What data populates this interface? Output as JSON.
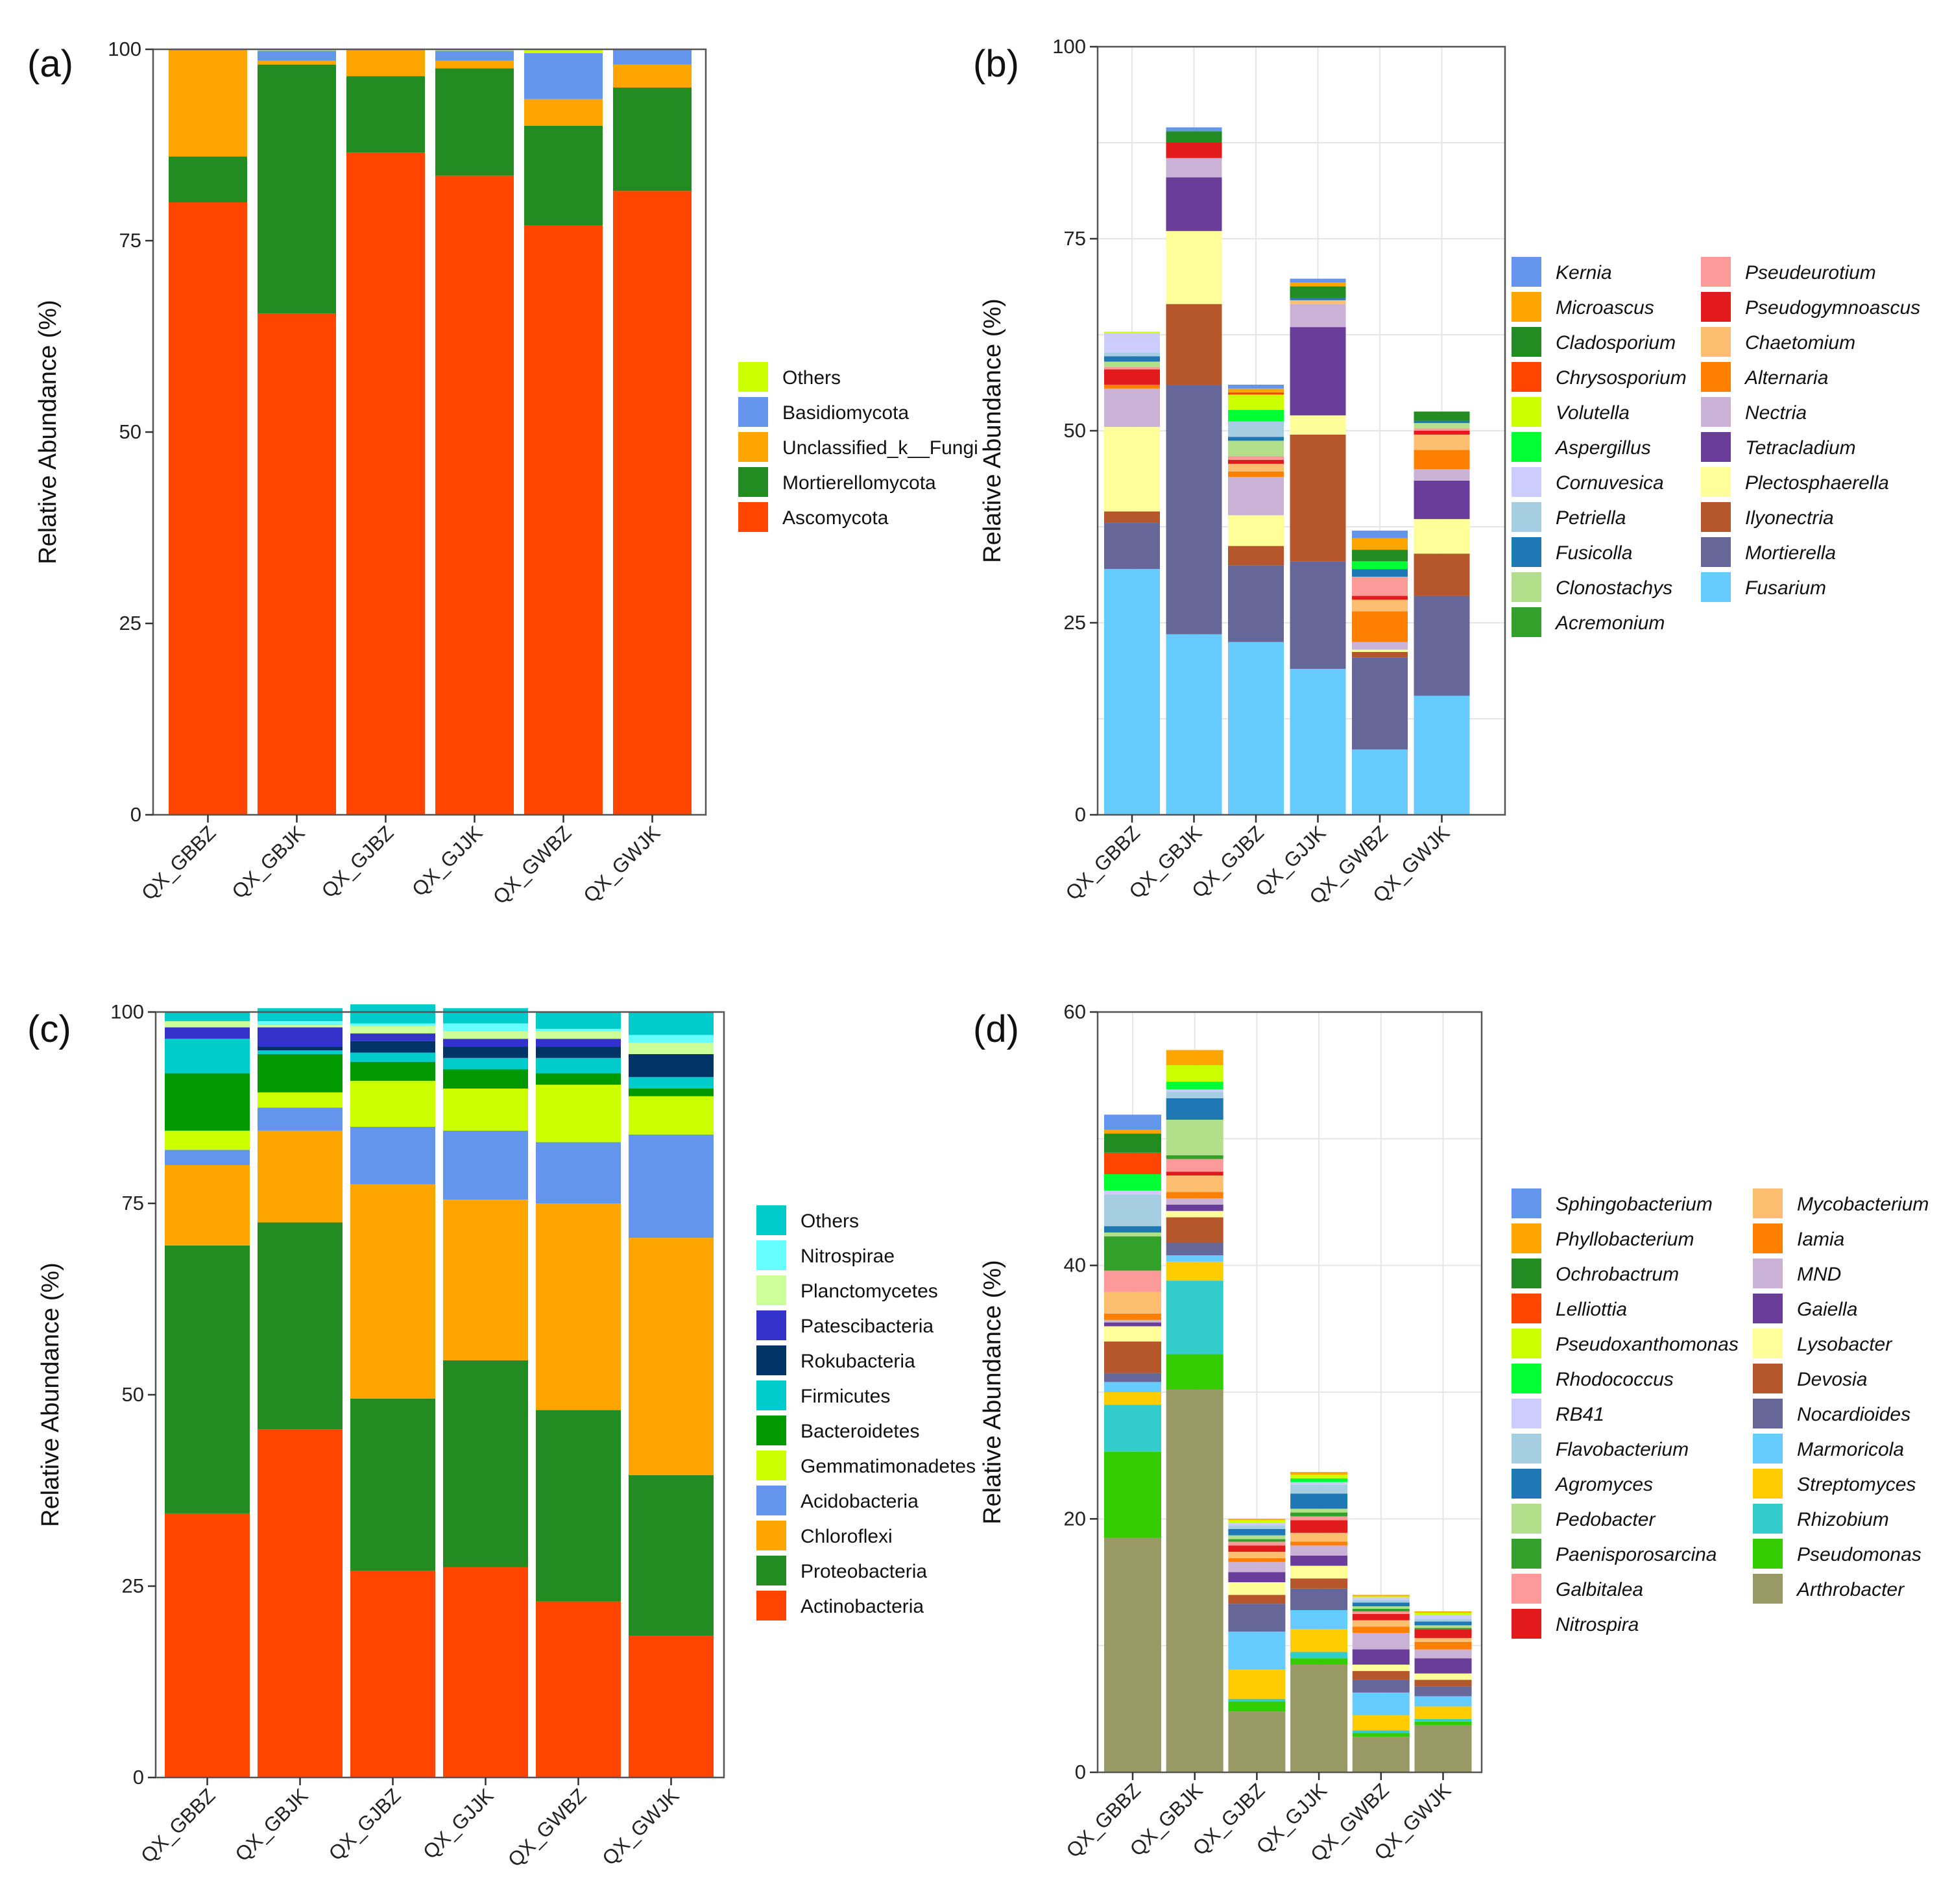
{
  "chart_data": [
    {
      "panel_label": "(a)",
      "type": "stacked-bar",
      "ylabel": "Relative Abundance (%)",
      "ylim": [
        0,
        100
      ],
      "yticks": [
        0,
        25,
        50,
        75,
        100
      ],
      "categories": [
        "QX_GBBZ",
        "QX_GBJK",
        "QX_GJBZ",
        "QX_GJJK",
        "QX_GWBZ",
        "QX_GWJK"
      ],
      "series": [
        {
          "name": "Ascomycota",
          "color": "#FF4500",
          "values": [
            80.0,
            65.5,
            86.5,
            83.5,
            77.0,
            81.5
          ]
        },
        {
          "name": "Mortierellomycota",
          "color": "#228B22",
          "values": [
            6.0,
            32.5,
            10.0,
            14.0,
            13.0,
            13.5
          ]
        },
        {
          "name": "Unclassified_k__Fungi",
          "color": "#FFA500",
          "values": [
            14.0,
            0.5,
            3.5,
            1.0,
            3.5,
            3.0
          ]
        },
        {
          "name": "Basidiomycota",
          "color": "#6495ED",
          "values": [
            0.0,
            1.3,
            0.0,
            1.3,
            6.0,
            2.0
          ]
        },
        {
          "name": "Others",
          "color": "#CCFF00",
          "values": [
            0.0,
            0.2,
            0.0,
            0.2,
            0.5,
            0.0
          ]
        }
      ],
      "legend_columns": 1,
      "legend_italic": false
    },
    {
      "panel_label": "(b)",
      "type": "stacked-bar",
      "ylabel": "Relative Abundance (%)",
      "ylim": [
        0,
        100
      ],
      "yticks": [
        0,
        25,
        50,
        75,
        100
      ],
      "categories": [
        "QX_GBBZ",
        "QX_GBJK",
        "QX_GJBZ",
        "QX_GJJK",
        "QX_GWBZ",
        "QX_GWJK"
      ],
      "series": [
        {
          "name": "Fusarium",
          "color": "#66CCFF",
          "values": [
            32.0,
            23.5,
            22.5,
            19.0,
            8.5,
            15.5
          ]
        },
        {
          "name": "Mortierella",
          "color": "#666699",
          "values": [
            6.0,
            32.5,
            10.0,
            14.0,
            12.0,
            13.0
          ]
        },
        {
          "name": "Ilyonectria",
          "color": "#B5562B",
          "values": [
            1.5,
            10.5,
            2.5,
            16.5,
            0.7,
            5.5
          ]
        },
        {
          "name": "Plectosphaerella",
          "color": "#FFFF99",
          "values": [
            11.0,
            9.5,
            4.0,
            2.5,
            0.3,
            4.5
          ]
        },
        {
          "name": "Tetracladium",
          "color": "#6A3D9A",
          "values": [
            0.0,
            7.0,
            0.0,
            11.5,
            0.0,
            5.0
          ]
        },
        {
          "name": "Nectria",
          "color": "#CAB2D6",
          "values": [
            5.0,
            2.5,
            5.0,
            3.0,
            1.0,
            1.5
          ]
        },
        {
          "name": "Alternaria",
          "color": "#FF7F00",
          "values": [
            0.5,
            0.0,
            0.7,
            0.0,
            4.0,
            2.5
          ]
        },
        {
          "name": "Chaetomium",
          "color": "#FDBF6F",
          "values": [
            0.0,
            0.0,
            1.0,
            0.5,
            1.5,
            2.0
          ]
        },
        {
          "name": "Pseudogymnoascus",
          "color": "#E31A1C",
          "values": [
            2.0,
            2.0,
            0.5,
            0.0,
            0.5,
            0.5
          ]
        },
        {
          "name": "Pseudeurotium",
          "color": "#FB9A99",
          "values": [
            0.3,
            0.0,
            0.5,
            0.0,
            2.5,
            0.3
          ]
        },
        {
          "name": "Acremonium",
          "color": "#33A02C",
          "values": [
            0.0,
            0.0,
            0.0,
            0.0,
            0.0,
            0.0
          ]
        },
        {
          "name": "Clonostachys",
          "color": "#B2DF8A",
          "values": [
            0.7,
            0.0,
            2.0,
            0.0,
            0.0,
            0.7
          ]
        },
        {
          "name": "Fusicolla",
          "color": "#1F78B4",
          "values": [
            0.7,
            0.0,
            0.5,
            0.3,
            1.0,
            0.3
          ]
        },
        {
          "name": "Petriella",
          "color": "#A6CEE3",
          "values": [
            0.5,
            0.0,
            2.0,
            0.0,
            0.0,
            0.0
          ]
        },
        {
          "name": "Cornuvesica",
          "color": "#CCCCFF",
          "values": [
            2.5,
            0.0,
            0.0,
            0.0,
            0.0,
            0.0
          ]
        },
        {
          "name": "Aspergillus",
          "color": "#00FF33",
          "values": [
            0.0,
            0.0,
            1.5,
            0.0,
            1.0,
            0.0
          ]
        },
        {
          "name": "Volutella",
          "color": "#CCFF00",
          "values": [
            0.2,
            0.0,
            2.0,
            0.0,
            0.0,
            0.0
          ]
        },
        {
          "name": "Chrysosporium",
          "color": "#FF4500",
          "values": [
            0.0,
            0.0,
            0.3,
            0.0,
            0.0,
            0.0
          ]
        },
        {
          "name": "Cladosporium",
          "color": "#228B22",
          "values": [
            0.0,
            1.5,
            0.0,
            1.5,
            1.5,
            1.2
          ]
        },
        {
          "name": "Microascus",
          "color": "#FFA500",
          "values": [
            0.0,
            0.0,
            0.5,
            0.5,
            1.5,
            0.0
          ]
        },
        {
          "name": "Kernia",
          "color": "#6495ED",
          "values": [
            0.0,
            0.5,
            0.5,
            0.5,
            1.0,
            0.0
          ]
        }
      ],
      "legend_columns": 2,
      "legend_italic": true,
      "legend_order": [
        "Kernia",
        "Microascus",
        "Cladosporium",
        "Chrysosporium",
        "Volutella",
        "Aspergillus",
        "Cornuvesica",
        "Petriella",
        "Fusicolla",
        "Clonostachys",
        "Acremonium",
        "Pseudeurotium",
        "Pseudogymnoascus",
        "Chaetomium",
        "Alternaria",
        "Nectria",
        "Tetracladium",
        "Plectosphaerella",
        "Ilyonectria",
        "Mortierella",
        "Fusarium"
      ]
    },
    {
      "panel_label": "(c)",
      "type": "stacked-bar",
      "ylabel": "Relative Abundance (%)",
      "ylim": [
        0,
        100
      ],
      "yticks": [
        0,
        25,
        50,
        75,
        100
      ],
      "categories": [
        "QX_GBBZ",
        "QX_GBJK",
        "QX_GJBZ",
        "QX_GJJK",
        "QX_GWBZ",
        "QX_GWJK"
      ],
      "series": [
        {
          "name": "Actinobacteria",
          "color": "#FF4500",
          "values": [
            34.5,
            45.5,
            27.0,
            27.5,
            23.0,
            18.5
          ]
        },
        {
          "name": "Proteobacteria",
          "color": "#228B22",
          "values": [
            35.0,
            27.0,
            22.5,
            27.0,
            25.0,
            21.0
          ]
        },
        {
          "name": "Chloroflexi",
          "color": "#FFA500",
          "values": [
            10.5,
            12.0,
            28.0,
            21.0,
            27.0,
            31.0
          ]
        },
        {
          "name": "Acidobacteria",
          "color": "#6495ED",
          "values": [
            2.0,
            3.0,
            7.5,
            9.0,
            8.0,
            13.5
          ]
        },
        {
          "name": "Gemmatimonadetes",
          "color": "#CCFF00",
          "values": [
            2.5,
            2.0,
            6.0,
            5.5,
            7.5,
            5.0
          ]
        },
        {
          "name": "Bacteroidetes",
          "color": "#009900",
          "values": [
            7.5,
            5.0,
            2.5,
            2.5,
            1.5,
            1.0
          ]
        },
        {
          "name": "Firmicutes",
          "color": "#00CCCC",
          "values": [
            4.5,
            0.5,
            1.2,
            1.5,
            2.0,
            1.5
          ]
        },
        {
          "name": "Rokubacteria",
          "color": "#003366",
          "values": [
            0.0,
            0.5,
            1.5,
            1.5,
            1.5,
            3.0
          ]
        },
        {
          "name": "Patescibacteria",
          "color": "#3333CC",
          "values": [
            1.5,
            2.5,
            1.0,
            1.0,
            1.0,
            0.0
          ]
        },
        {
          "name": "Planctomycetes",
          "color": "#CCFF99",
          "values": [
            0.8,
            0.3,
            1.0,
            1.0,
            1.0,
            1.5
          ]
        },
        {
          "name": "Nitrospirae",
          "color": "#66FFFF",
          "values": [
            0.0,
            0.5,
            0.3,
            1.0,
            0.3,
            1.0
          ]
        },
        {
          "name": "Others",
          "color": "#00CCCC",
          "values": [
            1.2,
            1.7,
            2.5,
            2.0,
            2.2,
            3.0
          ]
        }
      ],
      "legend_columns": 1,
      "legend_italic": false
    },
    {
      "panel_label": "(d)",
      "type": "stacked-bar",
      "ylabel": "Relative Abundance (%)",
      "ylim": [
        0,
        60
      ],
      "yticks": [
        0,
        20,
        40,
        60
      ],
      "categories": [
        "QX_GBBZ",
        "QX_GBJK",
        "QX_GJBZ",
        "QX_GJJK",
        "QX_GWBZ",
        "QX_GWJK"
      ],
      "series": [
        {
          "name": "Arthrobacter",
          "color": "#999966",
          "values": [
            18.5,
            30.2,
            4.8,
            8.5,
            2.8,
            3.7
          ]
        },
        {
          "name": "Pseudomonas",
          "color": "#33CC00",
          "values": [
            6.8,
            2.8,
            0.8,
            0.5,
            0.3,
            0.3
          ]
        },
        {
          "name": "Rhizobium",
          "color": "#33CCCC",
          "values": [
            3.7,
            5.8,
            0.2,
            0.5,
            0.2,
            0.2
          ]
        },
        {
          "name": "Streptomyces",
          "color": "#FFCC00",
          "values": [
            1.0,
            1.5,
            2.3,
            1.8,
            1.2,
            1.0
          ]
        },
        {
          "name": "Marmoricola",
          "color": "#66CCFF",
          "values": [
            0.8,
            0.5,
            3.0,
            1.5,
            1.8,
            0.8
          ]
        },
        {
          "name": "Nocardioides",
          "color": "#666699",
          "values": [
            0.7,
            1.0,
            2.2,
            1.7,
            1.0,
            0.8
          ]
        },
        {
          "name": "Devosia",
          "color": "#B5562B",
          "values": [
            2.5,
            2.0,
            0.7,
            0.8,
            0.7,
            0.5
          ]
        },
        {
          "name": "Lysobacter",
          "color": "#FFFF99",
          "values": [
            1.2,
            0.5,
            1.0,
            1.0,
            0.5,
            0.5
          ]
        },
        {
          "name": "Gaiella",
          "color": "#6A3D9A",
          "values": [
            0.3,
            0.5,
            0.8,
            0.8,
            1.2,
            1.2
          ]
        },
        {
          "name": "MND",
          "color": "#CAB2D6",
          "values": [
            0.2,
            0.5,
            0.8,
            0.8,
            1.3,
            0.7
          ]
        },
        {
          "name": "Iamia",
          "color": "#FF7F00",
          "values": [
            0.5,
            0.5,
            0.3,
            0.3,
            0.5,
            0.6
          ]
        },
        {
          "name": "Mycobacterium",
          "color": "#FDBF6F",
          "values": [
            1.7,
            1.3,
            0.5,
            0.7,
            0.5,
            0.3
          ]
        },
        {
          "name": "Nitrospira",
          "color": "#E31A1C",
          "values": [
            0.0,
            0.3,
            0.5,
            1.0,
            0.5,
            0.7
          ]
        },
        {
          "name": "Galbitalea",
          "color": "#FB9A99",
          "values": [
            1.7,
            1.0,
            0.3,
            0.3,
            0.2,
            0.0
          ]
        },
        {
          "name": "Paenisporosarcina",
          "color": "#33A02C",
          "values": [
            2.7,
            0.3,
            0.2,
            0.3,
            0.2,
            0.1
          ]
        },
        {
          "name": "Pedobacter",
          "color": "#B2DF8A",
          "values": [
            0.3,
            2.8,
            0.3,
            0.3,
            0.2,
            0.2
          ]
        },
        {
          "name": "Agromyces",
          "color": "#1F78B4",
          "values": [
            0.5,
            1.7,
            0.5,
            1.2,
            0.3,
            0.3
          ]
        },
        {
          "name": "Flavobacterium",
          "color": "#A6CEE3",
          "values": [
            2.5,
            0.5,
            0.3,
            0.7,
            0.2,
            0.2
          ]
        },
        {
          "name": "RB41",
          "color": "#CCCCFF",
          "values": [
            0.3,
            0.2,
            0.2,
            0.2,
            0.2,
            0.3
          ]
        },
        {
          "name": "Rhodococcus",
          "color": "#00FF33",
          "values": [
            1.3,
            0.6,
            0.0,
            0.3,
            0.0,
            0.0
          ]
        },
        {
          "name": "Pseudoxanthomonas",
          "color": "#CCFF00",
          "values": [
            0.0,
            1.3,
            0.2,
            0.3,
            0.1,
            0.2
          ]
        },
        {
          "name": "Lelliottia",
          "color": "#FF4500",
          "values": [
            1.7,
            0.0,
            0.0,
            0.0,
            0.0,
            0.0
          ]
        },
        {
          "name": "Ochrobactrum",
          "color": "#228B22",
          "values": [
            1.5,
            0.0,
            0.0,
            0.0,
            0.0,
            0.0
          ]
        },
        {
          "name": "Phyllobacterium",
          "color": "#FFA500",
          "values": [
            0.3,
            1.2,
            0.1,
            0.2,
            0.1,
            0.1
          ]
        },
        {
          "name": "Sphingobacterium",
          "color": "#6495ED",
          "values": [
            1.2,
            0.0,
            0.0,
            0.0,
            0.0,
            0.0
          ]
        }
      ],
      "legend_columns": 2,
      "legend_italic": true,
      "legend_order": [
        "Sphingobacterium",
        "Phyllobacterium",
        "Ochrobactrum",
        "Lelliottia",
        "Pseudoxanthomonas",
        "Rhodococcus",
        "RB41",
        "Flavobacterium",
        "Agromyces",
        "Pedobacter",
        "Paenisporosarcina",
        "Galbitalea",
        "Nitrospira",
        "Mycobacterium",
        "Iamia",
        "MND",
        "Gaiella",
        "Lysobacter",
        "Devosia",
        "Nocardioides",
        "Marmoricola",
        "Streptomyces",
        "Rhizobium",
        "Pseudomonas",
        "Arthrobacter"
      ]
    }
  ]
}
